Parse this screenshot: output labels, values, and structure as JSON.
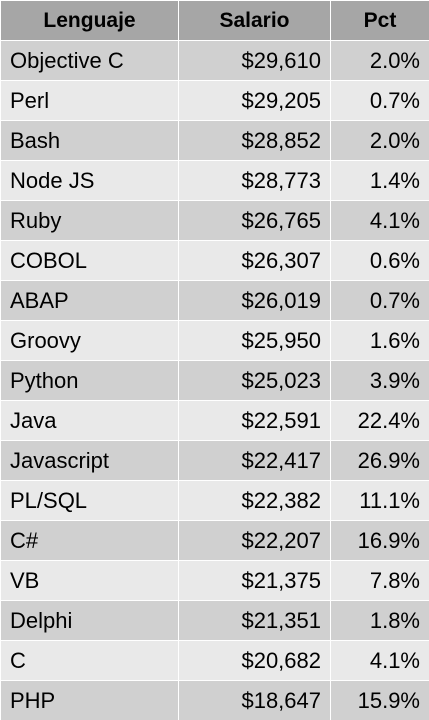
{
  "table": {
    "header": [
      "Lenguaje",
      "Salario",
      "Pct"
    ],
    "rows": [
      [
        "Objective C",
        "$29,610",
        "2.0%"
      ],
      [
        "Perl",
        "$29,205",
        "0.7%"
      ],
      [
        "Bash",
        "$28,852",
        "2.0%"
      ],
      [
        "Node JS",
        "$28,773",
        "1.4%"
      ],
      [
        "Ruby",
        "$26,765",
        "4.1%"
      ],
      [
        "COBOL",
        "$26,307",
        "0.6%"
      ],
      [
        "ABAP",
        "$26,019",
        "0.7%"
      ],
      [
        "Groovy",
        "$25,950",
        "1.6%"
      ],
      [
        "Python",
        "$25,023",
        "3.9%"
      ],
      [
        "Java",
        "$22,591",
        "22.4%"
      ],
      [
        "Javascript",
        "$22,417",
        "26.9%"
      ],
      [
        "PL/SQL",
        "$22,382",
        "11.1%"
      ],
      [
        "C#",
        "$22,207",
        "16.9%"
      ],
      [
        "VB",
        "$21,375",
        "7.8%"
      ],
      [
        "Delphi",
        "$21,351",
        "1.8%"
      ],
      [
        "C",
        "$20,682",
        "4.1%"
      ],
      [
        "PHP",
        "$18,647",
        "15.9%"
      ]
    ]
  }
}
